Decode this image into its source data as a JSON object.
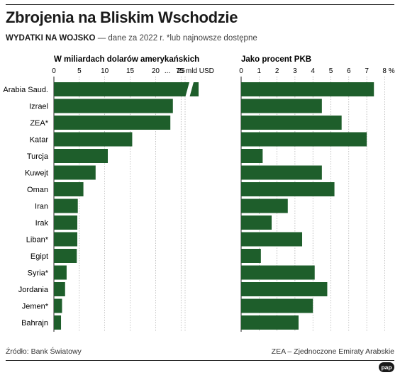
{
  "header": {
    "title": "Zbrojenia na Bliskim Wschodzie",
    "subtitle_strong": "WYDATKI NA WOJSKO",
    "subtitle_rest": " — dane za 2022 r. *lub najnowsze dostępne"
  },
  "footer": {
    "source": "Źródło: Bank Światowy",
    "note": "ZEA – Zjednoczone Emiraty Arabskie",
    "logo": "pap"
  },
  "colors": {
    "bar": "#1e5e2b",
    "grid": "#9a9a9a",
    "axis": "#222222"
  },
  "chart_data": [
    {
      "type": "bar",
      "orientation": "horizontal",
      "title": "W miliardach dolarów amerykańskich",
      "axis_break": {
        "after": 25,
        "resume": 75,
        "break_label": "..."
      },
      "xticks": [
        "0",
        "5",
        "10",
        "15",
        "20",
        "25",
        "...",
        "75 mld USD"
      ],
      "grid": true,
      "categories": [
        "Arabia Saud.",
        "Izrael",
        "ZEA*",
        "Katar",
        "Turcja",
        "Kuwejt",
        "Oman",
        "Iran",
        "Irak",
        "Liban*",
        "Egipt",
        "Syria*",
        "Jordania",
        "Jemen*",
        "Bahrajn"
      ],
      "values": [
        75,
        23.4,
        22.9,
        15.4,
        10.6,
        8.2,
        5.8,
        4.7,
        4.6,
        4.6,
        4.5,
        2.5,
        2.2,
        1.6,
        1.4
      ]
    },
    {
      "type": "bar",
      "orientation": "horizontal",
      "title": "Jako procent PKB",
      "xticks": [
        "0",
        "1",
        "2",
        "3",
        "4",
        "5",
        "6",
        "7",
        "8 %"
      ],
      "xlim": [
        0,
        8
      ],
      "grid": true,
      "categories": [
        "Arabia Saud.",
        "Izrael",
        "ZEA*",
        "Katar",
        "Turcja",
        "Kuwejt",
        "Oman",
        "Iran",
        "Irak",
        "Liban*",
        "Egipt",
        "Syria*",
        "Jordania",
        "Jemen*",
        "Bahrajn"
      ],
      "values": [
        7.4,
        4.5,
        5.6,
        7.0,
        1.2,
        4.5,
        5.2,
        2.6,
        1.7,
        3.4,
        1.1,
        4.1,
        4.8,
        4.0,
        3.2
      ]
    }
  ]
}
